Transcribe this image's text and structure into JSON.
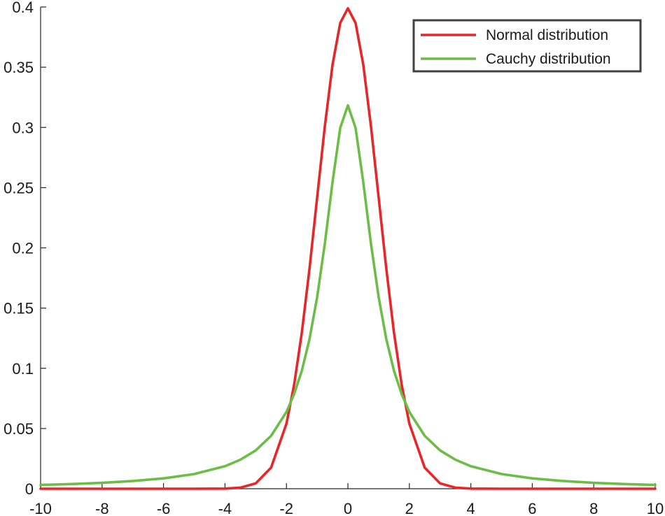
{
  "chart_data": {
    "type": "line",
    "title": "",
    "xlabel": "",
    "ylabel": "",
    "xlim": [
      -10,
      10
    ],
    "ylim": [
      0,
      0.4
    ],
    "x_ticks": [
      -10,
      -8,
      -6,
      -4,
      -2,
      0,
      2,
      4,
      6,
      8,
      10
    ],
    "x_tick_labels": [
      "-10",
      "-8",
      "-6",
      "-4",
      "-2",
      "0",
      "2",
      "4",
      "6",
      "8",
      "10"
    ],
    "y_ticks": [
      0,
      0.05,
      0.1,
      0.15,
      0.2,
      0.25,
      0.3,
      0.35,
      0.4
    ],
    "y_tick_labels": [
      "0",
      "0.05",
      "0.1",
      "0.15",
      "0.2",
      "0.25",
      "0.3",
      "0.35",
      "0.4"
    ],
    "grid": false,
    "legend_position": "top-right",
    "x": [
      -10,
      -9,
      -8,
      -7,
      -6,
      -5,
      -4,
      -3.5,
      -3,
      -2.5,
      -2,
      -1.75,
      -1.5,
      -1.25,
      -1,
      -0.75,
      -0.5,
      -0.25,
      0,
      0.25,
      0.5,
      0.75,
      1,
      1.25,
      1.5,
      1.75,
      2,
      2.5,
      3,
      3.5,
      4,
      5,
      6,
      7,
      8,
      9,
      10
    ],
    "series": [
      {
        "name": "Normal distribution",
        "color": "#e8262a",
        "values": [
          0,
          0,
          0,
          0,
          0,
          0,
          0.0001,
          0.0009,
          0.0044,
          0.0175,
          0.054,
          0.0863,
          0.1295,
          0.1826,
          0.242,
          0.3011,
          0.3521,
          0.3867,
          0.3989,
          0.3867,
          0.3521,
          0.3011,
          0.242,
          0.1826,
          0.1295,
          0.0863,
          0.054,
          0.0175,
          0.0044,
          0.0009,
          0.0001,
          0,
          0,
          0,
          0,
          0,
          0
        ]
      },
      {
        "name": " Cauchy distribution",
        "color": "#6cbd45",
        "values": [
          0.0032,
          0.0039,
          0.0049,
          0.0064,
          0.0086,
          0.0122,
          0.0187,
          0.0241,
          0.0318,
          0.0439,
          0.0637,
          0.0786,
          0.0979,
          0.1242,
          0.1592,
          0.2037,
          0.2546,
          0.2996,
          0.3183,
          0.2996,
          0.2546,
          0.2037,
          0.1592,
          0.1242,
          0.0979,
          0.0786,
          0.0637,
          0.0439,
          0.0318,
          0.0241,
          0.0187,
          0.0122,
          0.0086,
          0.0064,
          0.0049,
          0.0039,
          0.0032
        ]
      }
    ]
  }
}
